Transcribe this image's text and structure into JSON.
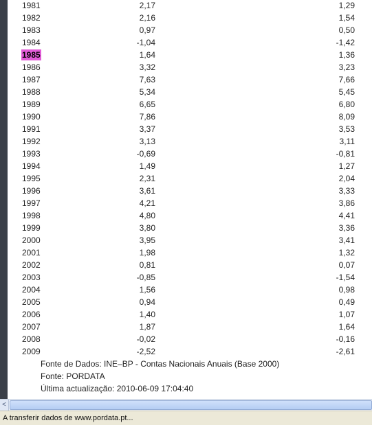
{
  "table": {
    "rows": [
      {
        "year": "1981",
        "v1": "2,17",
        "v2": "1,29"
      },
      {
        "year": "1982",
        "v1": "2,16",
        "v2": "1,54"
      },
      {
        "year": "1983",
        "v1": "0,97",
        "v2": "0,50"
      },
      {
        "year": "1984",
        "v1": "-1,04",
        "v2": "-1,42"
      },
      {
        "year": "1985",
        "v1": "1,64",
        "v2": "1,36",
        "highlight": true
      },
      {
        "year": "1986",
        "v1": "3,32",
        "v2": "3,23"
      },
      {
        "year": "1987",
        "v1": "7,63",
        "v2": "7,66"
      },
      {
        "year": "1988",
        "v1": "5,34",
        "v2": "5,45"
      },
      {
        "year": "1989",
        "v1": "6,65",
        "v2": "6,80"
      },
      {
        "year": "1990",
        "v1": "7,86",
        "v2": "8,09"
      },
      {
        "year": "1991",
        "v1": "3,37",
        "v2": "3,53"
      },
      {
        "year": "1992",
        "v1": "3,13",
        "v2": "3,11"
      },
      {
        "year": "1993",
        "v1": "-0,69",
        "v2": "-0,81"
      },
      {
        "year": "1994",
        "v1": "1,49",
        "v2": "1,27"
      },
      {
        "year": "1995",
        "v1": "2,31",
        "v2": "2,04"
      },
      {
        "year": "1996",
        "v1": "3,61",
        "v2": "3,33"
      },
      {
        "year": "1997",
        "v1": "4,21",
        "v2": "3,86"
      },
      {
        "year": "1998",
        "v1": "4,80",
        "v2": "4,41"
      },
      {
        "year": "1999",
        "v1": "3,80",
        "v2": "3,36"
      },
      {
        "year": "2000",
        "v1": "3,95",
        "v2": "3,41"
      },
      {
        "year": "2001",
        "v1": "1,98",
        "v2": "1,32"
      },
      {
        "year": "2002",
        "v1": "0,81",
        "v2": "0,07"
      },
      {
        "year": "2003",
        "v1": "-0,85",
        "v2": "-1,54"
      },
      {
        "year": "2004",
        "v1": "1,56",
        "v2": "0,98"
      },
      {
        "year": "2005",
        "v1": "0,94",
        "v2": "0,49"
      },
      {
        "year": "2006",
        "v1": "1,40",
        "v2": "1,07"
      },
      {
        "year": "2007",
        "v1": "1,87",
        "v2": "1,64"
      },
      {
        "year": "2008",
        "v1": "-0,02",
        "v2": "-0,16"
      },
      {
        "year": "2009",
        "v1": "-2,52",
        "v2": "-2,61"
      }
    ]
  },
  "footnotes": {
    "source_data": "Fonte de Dados: INE–BP - Contas Nacionais Anuais (Base 2000)",
    "source": "Fonte: PORDATA",
    "updated": "Última actualização: 2010-06-09 17:04:40"
  },
  "scrollbar": {
    "left_arrow": "<"
  },
  "status": {
    "text": "A transferir dados de www.pordata.pt..."
  },
  "colors": {
    "highlight": "#e25cd8",
    "sidebar": "#3a3f48",
    "statusbar": "#ece9d8"
  }
}
